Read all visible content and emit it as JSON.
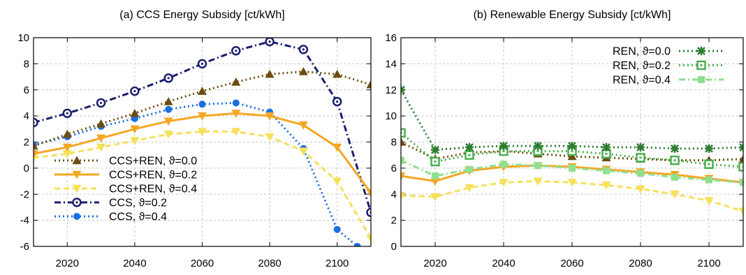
{
  "chart_data": [
    {
      "type": "line",
      "title": "(a) CCS Energy Subsidy [ct/kWh]",
      "xlabel": "",
      "ylabel": "",
      "xlim": [
        2010,
        2110
      ],
      "ylim": [
        -6,
        10
      ],
      "xticks": [
        2020,
        2040,
        2060,
        2080,
        2100
      ],
      "yticks": [
        -6,
        -4,
        -2,
        0,
        2,
        4,
        6,
        8,
        10
      ],
      "grid": true,
      "legend_position": "bottom-left",
      "series": [
        {
          "name": "CCS+REN, ϑ=0.0",
          "color": "#6b4e0f",
          "dash": "dot",
          "marker": "triangle-up",
          "x": [
            2010,
            2020,
            2030,
            2040,
            2050,
            2060,
            2070,
            2080,
            2090,
            2100,
            2110
          ],
          "y": [
            1.7,
            2.6,
            3.4,
            4.2,
            5.1,
            5.9,
            6.6,
            7.2,
            7.4,
            7.2,
            6.4
          ]
        },
        {
          "name": "CCS+REN, ϑ=0.2",
          "color": "#f5a623",
          "dash": "solid",
          "marker": "triangle-down",
          "x": [
            2010,
            2020,
            2030,
            2040,
            2050,
            2060,
            2070,
            2080,
            2090,
            2100,
            2110
          ],
          "y": [
            1.1,
            1.6,
            2.3,
            3.0,
            3.6,
            4.0,
            4.2,
            4.0,
            3.3,
            1.6,
            -1.9
          ]
        },
        {
          "name": "CCS+REN, ϑ=0.4",
          "color": "#f7e05a",
          "dash": "dash",
          "marker": "triangle-down",
          "x": [
            2010,
            2020,
            2030,
            2040,
            2050,
            2060,
            2070,
            2080,
            2090,
            2100,
            2110
          ],
          "y": [
            0.8,
            1.1,
            1.6,
            2.1,
            2.6,
            2.8,
            2.8,
            2.4,
            1.3,
            -1.0,
            -5.4
          ]
        },
        {
          "name": "CCS, ϑ=0.2",
          "color": "#1a1f6e",
          "dash": "dashdot",
          "marker": "circle-open",
          "x": [
            2010,
            2020,
            2030,
            2040,
            2050,
            2060,
            2070,
            2080,
            2090,
            2100,
            2110
          ],
          "y": [
            3.5,
            4.2,
            5.0,
            5.9,
            6.9,
            8.0,
            9.0,
            9.7,
            9.1,
            5.1,
            -3.4
          ]
        },
        {
          "name": "CCS, ϑ=0.4",
          "color": "#1a6fe0",
          "dash": "dot",
          "marker": "circle-filled",
          "x": [
            2010,
            2020,
            2030,
            2040,
            2050,
            2060,
            2070,
            2080,
            2090,
            2100,
            2106
          ],
          "y": [
            1.8,
            2.4,
            3.2,
            3.8,
            4.5,
            4.9,
            5.0,
            4.3,
            1.5,
            -4.7,
            -6.0
          ]
        }
      ]
    },
    {
      "type": "line",
      "title": "(b) Renewable Energy Subsidy [ct/kWh]",
      "xlabel": "",
      "ylabel": "",
      "xlim": [
        2010,
        2110
      ],
      "ylim": [
        0,
        16
      ],
      "xticks": [
        2020,
        2040,
        2060,
        2080,
        2100
      ],
      "yticks": [
        0,
        2,
        4,
        6,
        8,
        10,
        12,
        14,
        16
      ],
      "grid": true,
      "legend_position": "top-right",
      "series": [
        {
          "name": "REN, ϑ=0.0",
          "color": "#2e7d32",
          "dash": "dot",
          "marker": "star",
          "x": [
            2010,
            2020,
            2030,
            2040,
            2050,
            2060,
            2070,
            2080,
            2090,
            2100,
            2110
          ],
          "y": [
            12.0,
            7.4,
            7.6,
            7.7,
            7.7,
            7.7,
            7.6,
            7.6,
            7.5,
            7.5,
            7.6
          ]
        },
        {
          "name": "REN, ϑ=0.2",
          "color": "#4caf50",
          "dash": "dot",
          "marker": "square-open",
          "x": [
            2010,
            2020,
            2030,
            2040,
            2050,
            2060,
            2070,
            2080,
            2090,
            2100,
            2110
          ],
          "y": [
            8.7,
            6.5,
            7.0,
            7.3,
            7.3,
            7.3,
            7.1,
            6.8,
            6.6,
            6.3,
            6.1
          ]
        },
        {
          "name": "REN, ϑ=0.4",
          "color": "#8ee08e",
          "dash": "dashdot",
          "marker": "square-filled",
          "x": [
            2010,
            2020,
            2030,
            2040,
            2050,
            2060,
            2070,
            2080,
            2090,
            2100,
            2110
          ],
          "y": [
            6.6,
            5.4,
            5.9,
            6.3,
            6.2,
            6.0,
            5.8,
            5.6,
            5.3,
            5.1,
            4.9
          ]
        },
        {
          "name": "",
          "color": "#6b4e0f",
          "dash": "dot",
          "marker": "triangle-up",
          "x": [
            2010,
            2020,
            2030,
            2040,
            2050,
            2060,
            2070,
            2080,
            2090,
            2100,
            2110
          ],
          "y": [
            8.0,
            6.7,
            7.2,
            7.3,
            7.1,
            6.9,
            6.8,
            6.7,
            6.6,
            6.6,
            6.7
          ]
        },
        {
          "name": "",
          "color": "#f5a623",
          "dash": "solid",
          "marker": "triangle-down",
          "x": [
            2010,
            2020,
            2030,
            2040,
            2050,
            2060,
            2070,
            2080,
            2090,
            2100,
            2110
          ],
          "y": [
            5.4,
            5.0,
            5.8,
            6.1,
            6.2,
            6.1,
            5.9,
            5.7,
            5.5,
            5.2,
            4.9
          ]
        },
        {
          "name": "",
          "color": "#f7e05a",
          "dash": "dash",
          "marker": "triangle-down",
          "x": [
            2010,
            2020,
            2030,
            2040,
            2050,
            2060,
            2070,
            2080,
            2090,
            2100,
            2110
          ],
          "y": [
            3.9,
            3.8,
            4.5,
            4.9,
            5.0,
            4.9,
            4.7,
            4.4,
            4.0,
            3.5,
            2.7
          ]
        }
      ]
    }
  ]
}
